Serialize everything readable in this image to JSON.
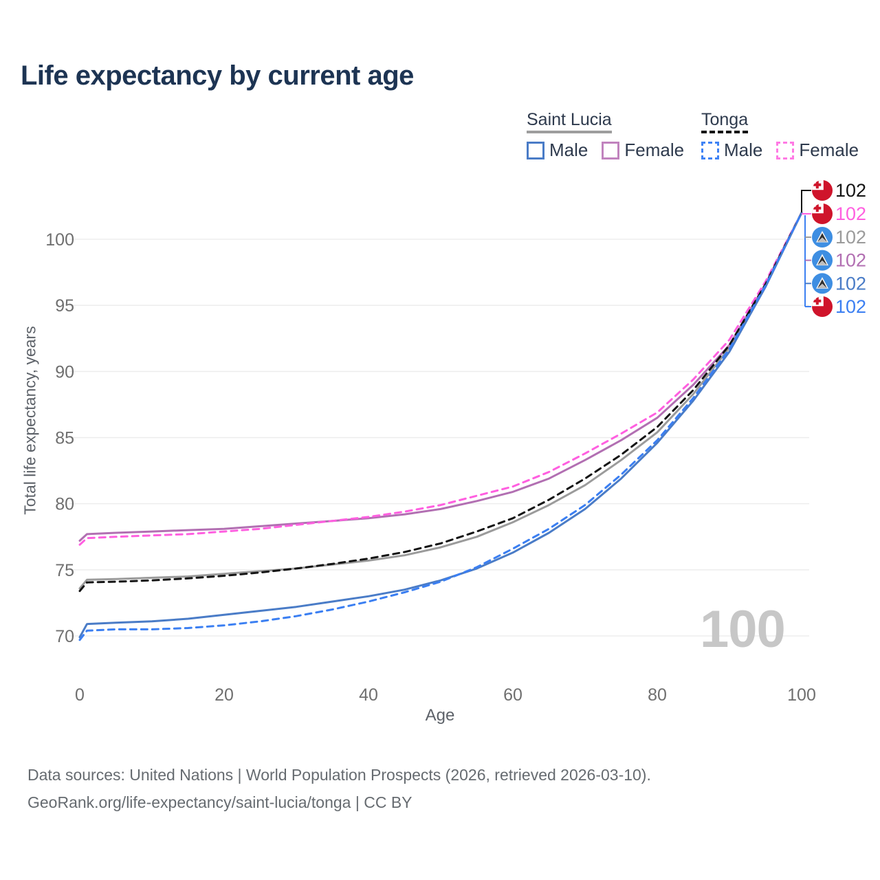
{
  "title": "Life expectancy by current age",
  "watermark": "100",
  "footer": {
    "line1": "Data sources: United Nations | World Population Prospects (2026, retrieved 2026-03-10).",
    "line2": "GeoRank.org/life-expectancy/saint-lucia/tonga | CC BY"
  },
  "legend": {
    "groups": [
      {
        "name": "Saint Lucia",
        "line_style": "solid",
        "underline_color": "#9e9e9e",
        "items": [
          {
            "label": "Male",
            "color": "#4a7cc7"
          },
          {
            "label": "Female",
            "color": "#c183be"
          }
        ]
      },
      {
        "name": "Tonga",
        "line_style": "dashed",
        "underline_color": "#141414",
        "items": [
          {
            "label": "Male",
            "color": "#3f83f5"
          },
          {
            "label": "Female",
            "color": "#ff7ae4"
          }
        ]
      }
    ]
  },
  "chart_data": {
    "type": "line",
    "title": "Life expectancy by current age",
    "xlabel": "Age",
    "ylabel": "Total life expectancy, years",
    "xlim": [
      0,
      100
    ],
    "ylim": [
      68.5,
      103.5
    ],
    "x_ticks": [
      0,
      20,
      40,
      60,
      80,
      100
    ],
    "y_ticks": [
      70,
      75,
      80,
      85,
      90,
      95,
      100
    ],
    "grid": "horizontal-only",
    "legend_position": "top-right",
    "x": [
      0,
      1,
      5,
      10,
      15,
      20,
      25,
      30,
      35,
      40,
      45,
      50,
      55,
      60,
      65,
      70,
      75,
      80,
      85,
      90,
      95,
      100
    ],
    "series": [
      {
        "id": "saint-lucia-female",
        "name": "Saint Lucia Female",
        "country": "Saint Lucia",
        "sex": "Female",
        "color": "#b26fb2",
        "dash": false,
        "values": [
          77.2,
          77.7,
          77.8,
          77.9,
          78.0,
          78.1,
          78.3,
          78.5,
          78.7,
          78.9,
          79.2,
          79.6,
          80.2,
          80.9,
          81.9,
          83.3,
          84.8,
          86.5,
          89.0,
          92.0,
          96.6,
          102
        ]
      },
      {
        "id": "tonga-female",
        "name": "Tonga Female",
        "country": "Tonga",
        "sex": "Female",
        "color": "#ff5fe0",
        "dash": true,
        "values": [
          76.9,
          77.4,
          77.5,
          77.6,
          77.7,
          77.9,
          78.1,
          78.4,
          78.7,
          79.0,
          79.4,
          79.9,
          80.6,
          81.3,
          82.4,
          83.8,
          85.3,
          86.9,
          89.4,
          92.4,
          96.8,
          102
        ]
      },
      {
        "id": "saint-lucia-all",
        "name": "Saint Lucia",
        "country": "Saint Lucia",
        "sex": "All",
        "color": "#9b9b9b",
        "dash": false,
        "values": [
          73.6,
          74.25,
          74.3,
          74.4,
          74.5,
          74.7,
          74.9,
          75.1,
          75.4,
          75.7,
          76.1,
          76.7,
          77.5,
          78.6,
          79.9,
          81.4,
          83.3,
          85.4,
          88.3,
          91.8,
          96.5,
          102
        ]
      },
      {
        "id": "tonga-all",
        "name": "Tonga",
        "country": "Tonga",
        "sex": "All",
        "color": "#141414",
        "dash": true,
        "values": [
          73.4,
          74.05,
          74.1,
          74.2,
          74.35,
          74.55,
          74.8,
          75.1,
          75.45,
          75.85,
          76.35,
          77.0,
          77.9,
          78.9,
          80.3,
          81.9,
          83.7,
          85.8,
          88.6,
          92.0,
          96.6,
          102
        ]
      },
      {
        "id": "saint-lucia-male",
        "name": "Saint Lucia Male",
        "country": "Saint Lucia",
        "sex": "Male",
        "color": "#4a7cc7",
        "dash": false,
        "values": [
          69.9,
          70.9,
          71.0,
          71.1,
          71.3,
          71.6,
          71.9,
          72.2,
          72.6,
          73.0,
          73.5,
          74.2,
          75.1,
          76.3,
          77.8,
          79.6,
          81.9,
          84.6,
          87.8,
          91.5,
          96.4,
          102
        ]
      },
      {
        "id": "tonga-male",
        "name": "Tonga Male",
        "country": "Tonga",
        "sex": "Male",
        "color": "#3b7ff2",
        "dash": true,
        "values": [
          69.7,
          70.4,
          70.5,
          70.5,
          70.6,
          70.8,
          71.1,
          71.5,
          72.0,
          72.6,
          73.3,
          74.1,
          75.2,
          76.6,
          78.1,
          79.9,
          82.2,
          84.8,
          88.0,
          91.7,
          96.5,
          102
        ]
      }
    ]
  },
  "end_labels": [
    {
      "value": "102",
      "flag": "tonga",
      "series": "tonga-all",
      "color": "#141414"
    },
    {
      "value": "102",
      "flag": "tonga",
      "series": "tonga-female",
      "color": "#ff5fe0"
    },
    {
      "value": "102",
      "flag": "saint-lucia",
      "series": "saint-lucia-all",
      "color": "#9b9b9b"
    },
    {
      "value": "102",
      "flag": "saint-lucia",
      "series": "saint-lucia-female",
      "color": "#b26fb2"
    },
    {
      "value": "102",
      "flag": "saint-lucia",
      "series": "saint-lucia-male",
      "color": "#4a7cc7"
    },
    {
      "value": "102",
      "flag": "tonga",
      "series": "tonga-male",
      "color": "#3b7ff2"
    }
  ],
  "flag_colors": {
    "tonga_red": "#cf142b",
    "saint_lucia_blue": "#3e8ee2"
  }
}
